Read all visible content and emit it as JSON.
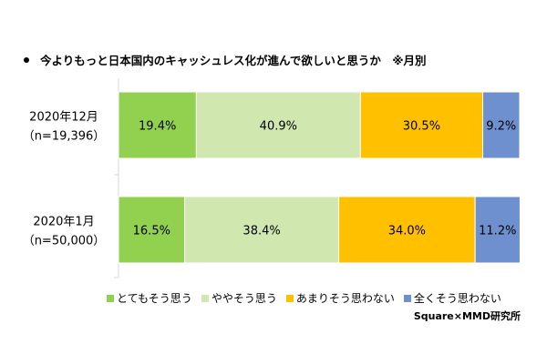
{
  "chart_data": {
    "type": "bar",
    "orientation": "horizontal",
    "stacked": true,
    "normalized_percent": true,
    "title": "今よりもっと日本国内のキャッシュレス化が進んで欲しいと思うか　※月別",
    "categories": [
      {
        "label": "2020年12月",
        "sublabel": "（n=19,396）"
      },
      {
        "label": "2020年1月",
        "sublabel": "（n=50,000）"
      }
    ],
    "series": [
      {
        "name": "とてもそう思う",
        "color": "#92d050",
        "values": [
          19.4,
          16.5
        ],
        "labels": [
          "19.4%",
          "16.5%"
        ]
      },
      {
        "name": "ややそう思う",
        "color": "#d0e8b0",
        "values": [
          40.9,
          38.4
        ],
        "labels": [
          "40.9%",
          "38.4%"
        ]
      },
      {
        "name": "あまりそう思わない",
        "color": "#ffc000",
        "values": [
          30.5,
          34.0
        ],
        "labels": [
          "30.5%",
          "34.0%"
        ]
      },
      {
        "name": "全くそう思わない",
        "color": "#6f90cf",
        "values": [
          9.2,
          11.2
        ],
        "labels": [
          "9.2%",
          "11.2%"
        ]
      }
    ],
    "xlim": [
      0,
      100
    ],
    "legend_position": "bottom",
    "grid": false
  },
  "source": "Square×MMD研究所"
}
